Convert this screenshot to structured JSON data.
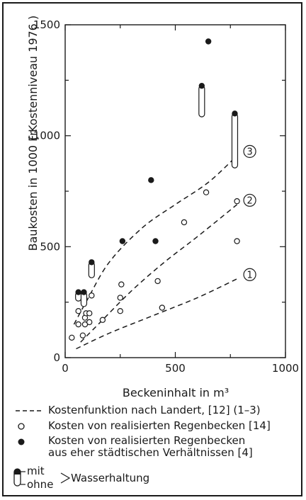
{
  "chart_data": {
    "type": "scatter",
    "xlabel": "Beckeninhalt  in  m³",
    "ylabel": "Baukosten  in  1000 Fr.",
    "ylabel_note": "( Kostenniveau 1976 )",
    "xlim": [
      0,
      1000
    ],
    "ylim": [
      0,
      1500
    ],
    "xticks": [
      "0",
      "500",
      "1000"
    ],
    "yticks": [
      "0",
      "500",
      "1000",
      "1500"
    ],
    "grid": false,
    "legend_position": "bottom",
    "curves": [
      {
        "label": "1",
        "points": [
          [
            50,
            40
          ],
          [
            200,
            110
          ],
          [
            400,
            190
          ],
          [
            600,
            270
          ],
          [
            780,
            355
          ]
        ]
      },
      {
        "label": "2",
        "points": [
          [
            70,
            70
          ],
          [
            150,
            150
          ],
          [
            300,
            300
          ],
          [
            450,
            430
          ],
          [
            600,
            545
          ],
          [
            780,
            690
          ]
        ]
      },
      {
        "label": "3",
        "points": [
          [
            40,
            150
          ],
          [
            100,
            260
          ],
          [
            200,
            430
          ],
          [
            350,
            585
          ],
          [
            500,
            690
          ],
          [
            650,
            790
          ],
          [
            780,
            910
          ]
        ]
      }
    ],
    "open_points": [
      [
        30,
        90
      ],
      [
        60,
        210
      ],
      [
        60,
        150
      ],
      [
        80,
        100
      ],
      [
        90,
        150
      ],
      [
        90,
        180
      ],
      [
        95,
        200
      ],
      [
        110,
        160
      ],
      [
        110,
        200
      ],
      [
        120,
        280
      ],
      [
        170,
        170
      ],
      [
        250,
        210
      ],
      [
        250,
        270
      ],
      [
        255,
        330
      ],
      [
        420,
        345
      ],
      [
        440,
        225
      ],
      [
        540,
        610
      ],
      [
        640,
        745
      ],
      [
        780,
        705
      ],
      [
        780,
        525
      ]
    ],
    "filled_points": [
      [
        60,
        295
      ],
      [
        85,
        295
      ],
      [
        120,
        430
      ],
      [
        260,
        525
      ],
      [
        390,
        800
      ],
      [
        410,
        525
      ],
      [
        620,
        1225
      ],
      [
        650,
        1425
      ],
      [
        770,
        1100
      ]
    ],
    "ranges": [
      {
        "x": 60,
        "top": 295,
        "bottom": 255
      },
      {
        "x": 85,
        "top": 295,
        "bottom": 230
      },
      {
        "x": 120,
        "top": 430,
        "bottom": 360
      },
      {
        "x": 620,
        "top": 1225,
        "bottom": 1085
      },
      {
        "x": 770,
        "top": 1100,
        "bottom": 855
      }
    ]
  },
  "legend": {
    "dashed": "Kostenfunktion nach Landert, [12]  (1–3)",
    "open": "Kosten von realisierten Regenbecken [14]",
    "filled_1": "Kosten von realisierten Regenbecken",
    "filled_2": "aus eher städtischen Verhältnissen [4]",
    "mit": "mit",
    "ohne": "ohne",
    "wasserhaltung": "Wasserhaltung"
  },
  "colors": {
    "ink": "#1a1a1a",
    "paper": "#ffffff"
  }
}
